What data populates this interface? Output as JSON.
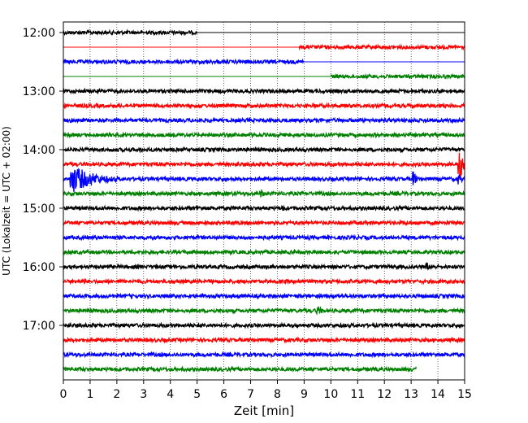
{
  "chart_data": {
    "type": "line",
    "title": "",
    "xlabel": "Zeit  [min]",
    "ylabel": "UTC (Lokalzeit = UTC + 02:00)",
    "xlim": [
      0,
      15
    ],
    "xticks": [
      0,
      1,
      2,
      3,
      4,
      5,
      6,
      7,
      8,
      9,
      10,
      11,
      12,
      13,
      14,
      15
    ],
    "xtick_labels": [
      "0",
      "1",
      "2",
      "3",
      "4",
      "5",
      "6",
      "7",
      "8",
      "9",
      "10",
      "11",
      "12",
      "13",
      "14",
      "15"
    ],
    "ytick_labels": [
      "12:00",
      "13:00",
      "14:00",
      "15:00",
      "16:00",
      "17:00"
    ],
    "ytick_rows": [
      0,
      4,
      8,
      12,
      16,
      20
    ],
    "row_interval_min": 15,
    "colors": [
      "#000000",
      "#ff0000",
      "#0000ff",
      "#008000"
    ],
    "grid": "vertical dotted",
    "traces": [
      {
        "time": "12:00",
        "color": "black",
        "start_min": 0,
        "end_min": 5,
        "events": []
      },
      {
        "time": "12:15",
        "color": "red",
        "start_min": 8.8,
        "end_min": 15,
        "events": []
      },
      {
        "time": "12:30",
        "color": "blue",
        "start_min": 0,
        "end_min": 9,
        "events": []
      },
      {
        "time": "12:45",
        "color": "green",
        "start_min": 10,
        "end_min": 15,
        "events": []
      },
      {
        "time": "13:00",
        "color": "black",
        "start_min": 0,
        "end_min": 15,
        "events": []
      },
      {
        "time": "13:15",
        "color": "red",
        "start_min": 0,
        "end_min": 15,
        "events": []
      },
      {
        "time": "13:30",
        "color": "blue",
        "start_min": 0,
        "end_min": 15,
        "events": []
      },
      {
        "time": "13:45",
        "color": "green",
        "start_min": 0,
        "end_min": 15,
        "events": []
      },
      {
        "time": "14:00",
        "color": "black",
        "start_min": 0,
        "end_min": 15,
        "events": []
      },
      {
        "time": "14:15",
        "color": "red",
        "start_min": 0,
        "end_min": 15,
        "events": [
          {
            "at": 14.8,
            "amp": 22,
            "dur": 0.4
          }
        ]
      },
      {
        "time": "14:30",
        "color": "blue",
        "start_min": 0,
        "end_min": 15,
        "events": [
          {
            "at": 0.3,
            "amp": 18,
            "dur": 2.0
          },
          {
            "at": 13.1,
            "amp": 10,
            "dur": 0.25
          },
          {
            "at": 14.8,
            "amp": 7,
            "dur": 0.3
          }
        ]
      },
      {
        "time": "14:45",
        "color": "green",
        "start_min": 0,
        "end_min": 15,
        "events": [
          {
            "at": 7.4,
            "amp": 6,
            "dur": 0.3
          }
        ]
      },
      {
        "time": "15:00",
        "color": "black",
        "start_min": 0,
        "end_min": 15,
        "events": [
          {
            "at": 5.0,
            "amp": 5,
            "dur": 0.2
          },
          {
            "at": 8.2,
            "amp": 5,
            "dur": 0.2
          }
        ]
      },
      {
        "time": "15:15",
        "color": "red",
        "start_min": 0,
        "end_min": 15,
        "events": []
      },
      {
        "time": "15:30",
        "color": "blue",
        "start_min": 0,
        "end_min": 15,
        "events": []
      },
      {
        "time": "15:45",
        "color": "green",
        "start_min": 0,
        "end_min": 15,
        "events": []
      },
      {
        "time": "16:00",
        "color": "black",
        "start_min": 0,
        "end_min": 15,
        "events": [
          {
            "at": 13.6,
            "amp": 6,
            "dur": 0.2
          }
        ]
      },
      {
        "time": "16:15",
        "color": "red",
        "start_min": 0,
        "end_min": 15,
        "events": [
          {
            "at": 0.8,
            "amp": 4,
            "dur": 0.2
          }
        ]
      },
      {
        "time": "16:30",
        "color": "blue",
        "start_min": 0,
        "end_min": 15,
        "events": []
      },
      {
        "time": "16:45",
        "color": "green",
        "start_min": 0,
        "end_min": 15,
        "events": [
          {
            "at": 9.5,
            "amp": 6,
            "dur": 0.6
          }
        ]
      },
      {
        "time": "17:00",
        "color": "black",
        "start_min": 0,
        "end_min": 15,
        "events": []
      },
      {
        "time": "17:15",
        "color": "red",
        "start_min": 0,
        "end_min": 15,
        "events": []
      },
      {
        "time": "17:30",
        "color": "blue",
        "start_min": 0,
        "end_min": 15,
        "events": []
      },
      {
        "time": "17:45",
        "color": "green",
        "start_min": 0,
        "end_min": 13.2,
        "events": []
      }
    ]
  }
}
